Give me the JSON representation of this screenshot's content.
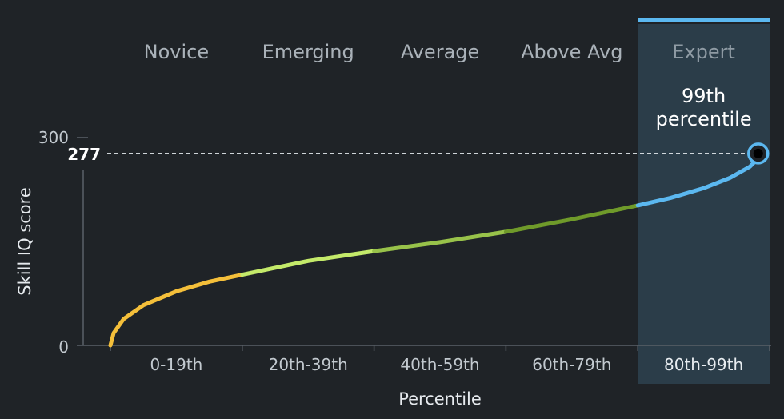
{
  "chart_data": {
    "type": "line",
    "xlabel": "Percentile",
    "ylabel": "Skill IQ score",
    "ylim": [
      0,
      300
    ],
    "y_ticks": [
      0,
      300
    ],
    "xlim": [
      0,
      100
    ],
    "grid": false,
    "segments": [
      {
        "level": "Novice",
        "range_label": "0-19th",
        "x_start": 0,
        "x_end": 20,
        "color": "#f4bf3a"
      },
      {
        "level": "Emerging",
        "range_label": "20th-39th",
        "x_start": 20,
        "x_end": 40,
        "color": "#c4ea6a"
      },
      {
        "level": "Average",
        "range_label": "40th-59th",
        "x_start": 40,
        "x_end": 60,
        "color": "#98c24a"
      },
      {
        "level": "Above Avg",
        "range_label": "60th-79th",
        "x_start": 60,
        "x_end": 80,
        "color": "#6f9a2a"
      },
      {
        "level": "Expert",
        "range_label": "80th-99th",
        "x_start": 80,
        "x_end": 100,
        "color": "#5bb8f0"
      }
    ],
    "highlighted_segment": 4,
    "x": [
      0,
      0.5,
      2,
      5,
      10,
      15,
      20,
      30,
      40,
      50,
      60,
      70,
      80,
      85,
      90,
      94,
      97,
      99
    ],
    "y": [
      0,
      18,
      38,
      58,
      78,
      92,
      102,
      122,
      136,
      149,
      164,
      182,
      202,
      213,
      227,
      242,
      258,
      277
    ],
    "marker": {
      "x": 99,
      "y": 277,
      "value_label": "277",
      "percentile_line1": "99th",
      "percentile_line2": "percentile"
    },
    "highlight_color": "#2b3d49",
    "highlight_bar_color": "#5bb8f0"
  }
}
